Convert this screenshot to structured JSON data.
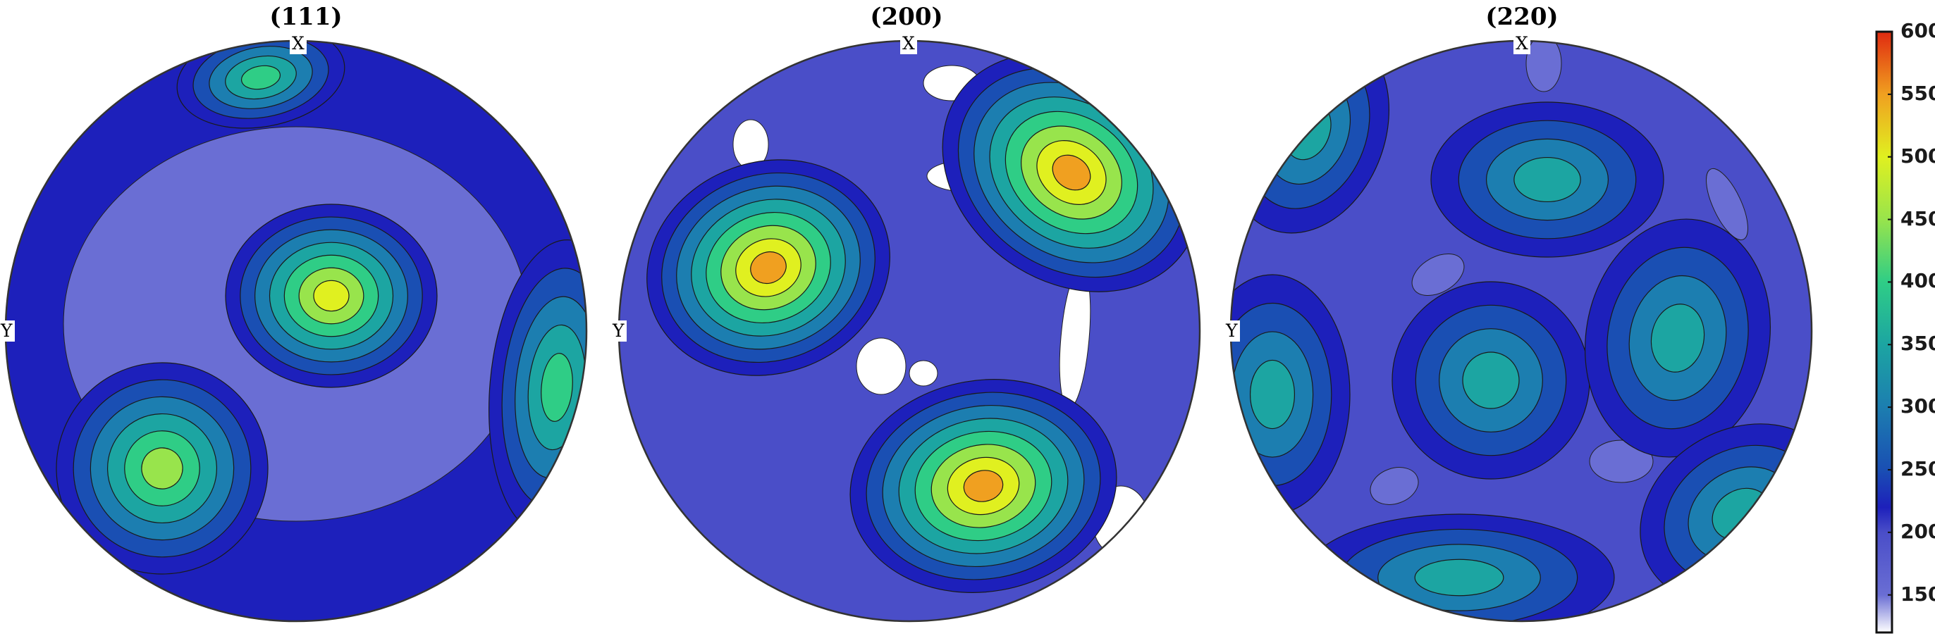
{
  "chart_data": {
    "type": "heatmap",
    "subtype": "pole figure contour (equal-area projection)",
    "plots": [
      {
        "title": "(111)",
        "x_axis_label": "X",
        "y_axis_label": "Y",
        "background_level": 150,
        "maxima": [
          {
            "azimuth_label": "near X (top)",
            "value": 400
          },
          {
            "azimuth_label": "center",
            "value": 500
          },
          {
            "azimuth_label": "lower-left",
            "value": 480
          },
          {
            "azimuth_label": "right edge",
            "value": 420
          }
        ]
      },
      {
        "title": "(200)",
        "x_axis_label": "X",
        "y_axis_label": "Y",
        "background_level": 200,
        "maxima": [
          {
            "azimuth_label": "upper-left",
            "value": 560
          },
          {
            "azimuth_label": "upper-right",
            "value": 560
          },
          {
            "azimuth_label": "lower-center",
            "value": 590
          }
        ]
      },
      {
        "title": "(220)",
        "x_axis_label": "X",
        "y_axis_label": "Y",
        "background_level": 200,
        "maxima": [
          {
            "azimuth_label": "upper-center",
            "value": 380
          },
          {
            "azimuth_label": "center",
            "value": 370
          },
          {
            "azimuth_label": "right",
            "value": 380
          },
          {
            "azimuth_label": "left edge",
            "value": 380
          },
          {
            "azimuth_label": "bottom",
            "value": 380
          },
          {
            "azimuth_label": "upper-left edge",
            "value": 350
          },
          {
            "azimuth_label": "lower-right edge",
            "value": 370
          }
        ]
      }
    ],
    "colorbar": {
      "range": [
        120,
        600
      ],
      "ticks": [
        150,
        200,
        250,
        300,
        350,
        400,
        450,
        500,
        550,
        600
      ],
      "colormap": "parula-like (white-lavender to blue to teal to yellow to red)"
    },
    "colors": {
      "c120": "#ffffff",
      "c150": "#6a6ed4",
      "c200": "#4a4ec8",
      "c220": "#1d20bb",
      "c250": "#1a4fb3",
      "c300": "#1c7eb0",
      "c350": "#1ca5a2",
      "c400": "#2fcd86",
      "c450": "#98e44c",
      "c500": "#e0f020",
      "c550": "#f0a020",
      "c600": "#e02a10"
    }
  }
}
